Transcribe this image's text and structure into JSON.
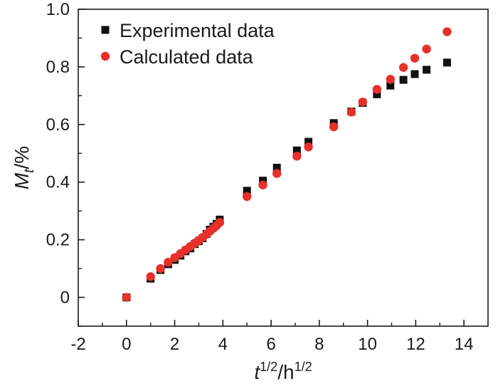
{
  "chart_data": {
    "type": "scatter",
    "title": "",
    "xlabel": {
      "main": "t",
      "sup1": "1/2",
      "mid": "/h",
      "sup2": "1/2"
    },
    "ylabel": {
      "main": "M",
      "sub": "t",
      "tail": "/%"
    },
    "xlim": [
      -2,
      15
    ],
    "ylim": [
      -0.1,
      1.0
    ],
    "x_ticks": [
      -2,
      0,
      2,
      4,
      6,
      8,
      10,
      12,
      14
    ],
    "x_tick_labels": [
      "-2",
      "0",
      "2",
      "4",
      "6",
      "8",
      "10",
      "12",
      "14"
    ],
    "y_ticks": [
      0,
      0.2,
      0.4,
      0.6,
      0.8,
      1.0
    ],
    "y_tick_labels": [
      "0",
      "0.2",
      "0.4",
      "0.6",
      "0.8",
      "1.0"
    ],
    "grid": false,
    "legend_position": "top-left",
    "series": [
      {
        "name": "Experimental data",
        "marker": "square",
        "color": "#111111",
        "points": [
          [
            0,
            0.0
          ],
          [
            1.0,
            0.065
          ],
          [
            1.41,
            0.095
          ],
          [
            1.73,
            0.115
          ],
          [
            2.0,
            0.13
          ],
          [
            2.24,
            0.145
          ],
          [
            2.45,
            0.16
          ],
          [
            2.65,
            0.17
          ],
          [
            2.83,
            0.185
          ],
          [
            3.0,
            0.195
          ],
          [
            3.16,
            0.205
          ],
          [
            3.32,
            0.22
          ],
          [
            3.46,
            0.235
          ],
          [
            3.61,
            0.245
          ],
          [
            3.74,
            0.255
          ],
          [
            3.87,
            0.27
          ],
          [
            5.0,
            0.37
          ],
          [
            5.66,
            0.405
          ],
          [
            6.24,
            0.45
          ],
          [
            7.07,
            0.51
          ],
          [
            7.55,
            0.54
          ],
          [
            8.6,
            0.605
          ],
          [
            9.33,
            0.645
          ],
          [
            9.8,
            0.675
          ],
          [
            10.39,
            0.705
          ],
          [
            10.95,
            0.735
          ],
          [
            11.49,
            0.755
          ],
          [
            11.96,
            0.775
          ],
          [
            12.45,
            0.79
          ],
          [
            13.3,
            0.815
          ]
        ]
      },
      {
        "name": "Calculated data",
        "marker": "circle",
        "color": "#e8302a",
        "points": [
          [
            0,
            0.0
          ],
          [
            1.0,
            0.072
          ],
          [
            1.41,
            0.1
          ],
          [
            1.73,
            0.122
          ],
          [
            2.0,
            0.138
          ],
          [
            2.24,
            0.152
          ],
          [
            2.45,
            0.165
          ],
          [
            2.65,
            0.177
          ],
          [
            2.83,
            0.188
          ],
          [
            3.0,
            0.198
          ],
          [
            3.16,
            0.208
          ],
          [
            3.32,
            0.219
          ],
          [
            3.46,
            0.229
          ],
          [
            3.61,
            0.24
          ],
          [
            3.74,
            0.249
          ],
          [
            3.87,
            0.26
          ],
          [
            5.0,
            0.35
          ],
          [
            5.66,
            0.39
          ],
          [
            6.24,
            0.43
          ],
          [
            7.07,
            0.49
          ],
          [
            7.55,
            0.522
          ],
          [
            8.6,
            0.592
          ],
          [
            9.33,
            0.643
          ],
          [
            9.8,
            0.678
          ],
          [
            10.39,
            0.722
          ],
          [
            10.95,
            0.757
          ],
          [
            11.49,
            0.798
          ],
          [
            11.96,
            0.83
          ],
          [
            12.45,
            0.862
          ],
          [
            13.3,
            0.922
          ]
        ]
      }
    ]
  }
}
